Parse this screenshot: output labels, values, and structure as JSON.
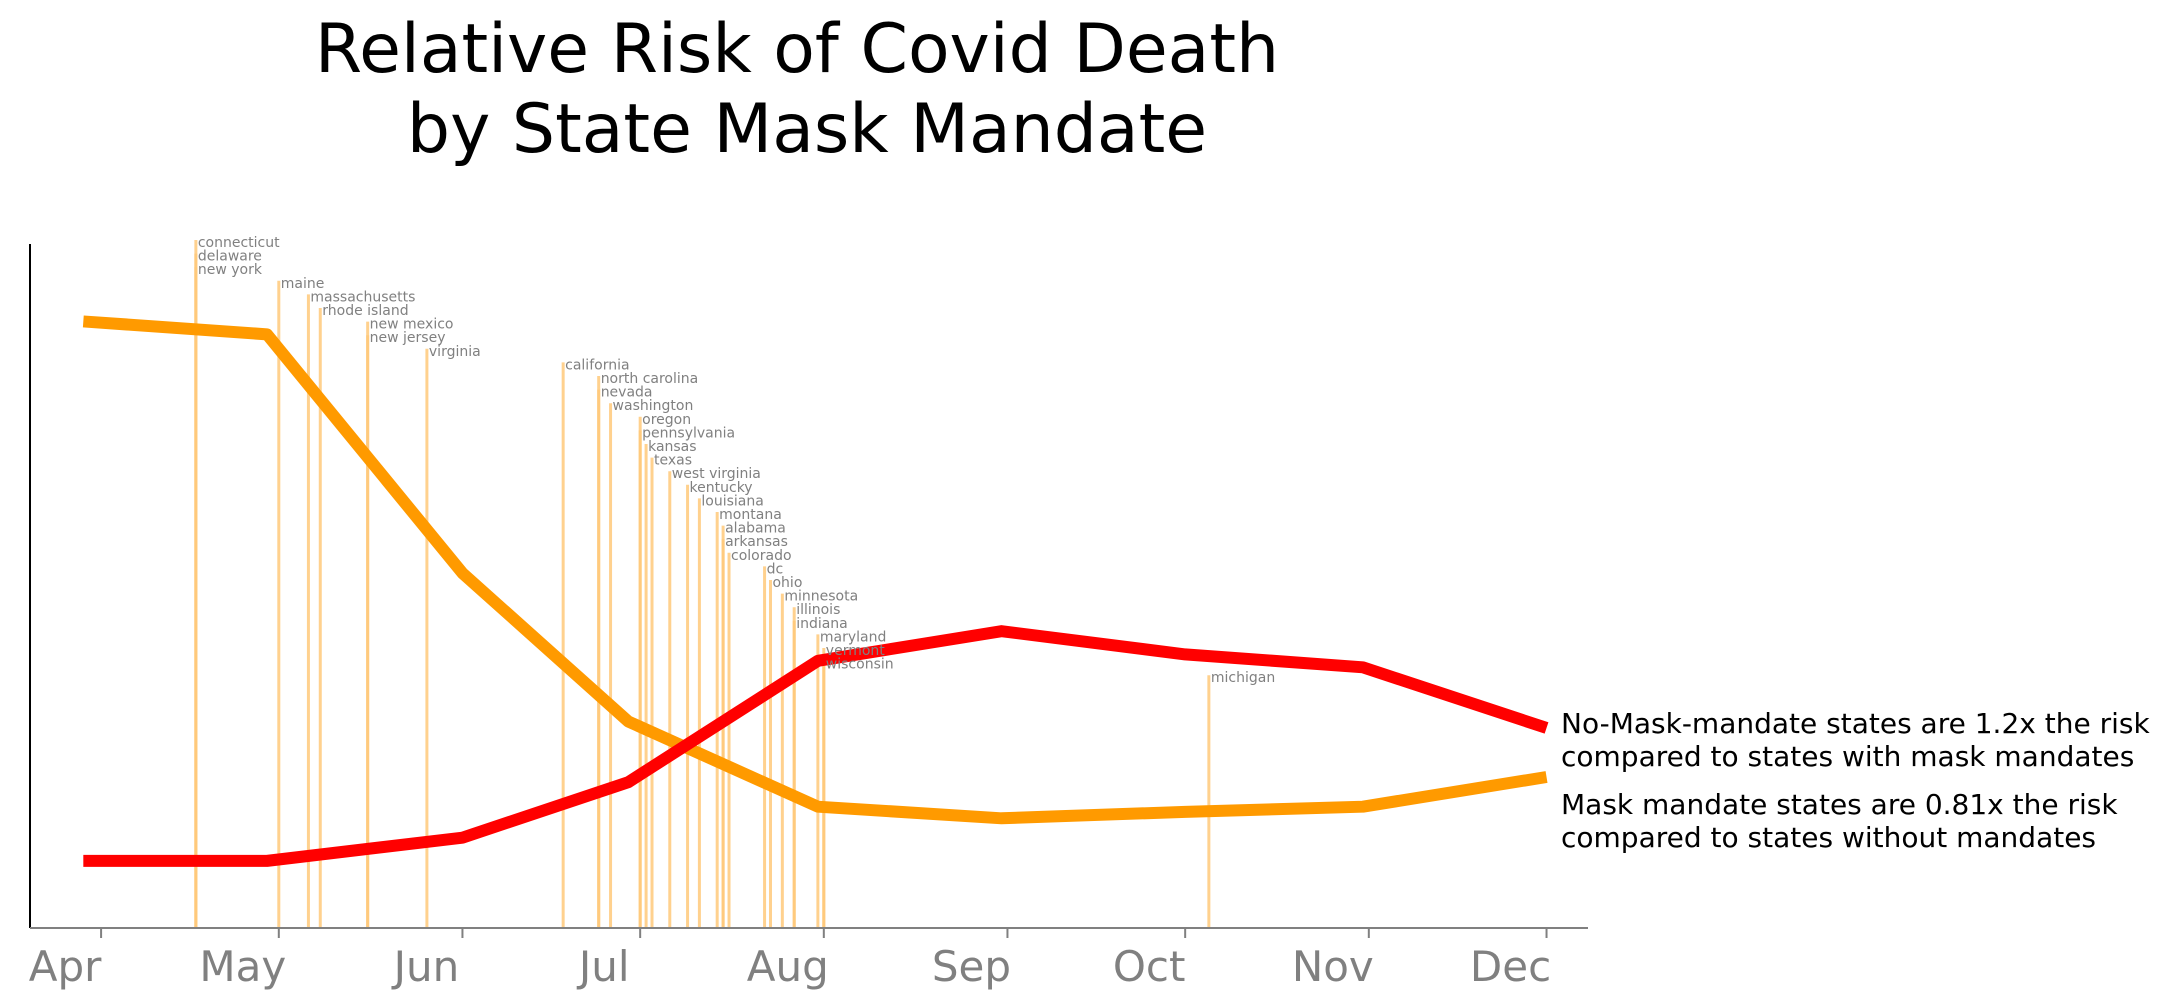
{
  "chart_data": {
    "type": "line",
    "title_lines": [
      "Relative Risk of Covid Death",
      "by State Mask Mandate"
    ],
    "x_tick_labels": [
      "Apr",
      "May",
      "Jun",
      "Jul",
      "Aug",
      "Sep",
      "Oct",
      "Nov",
      "Dec"
    ],
    "x_ticks": [
      "2020-04-01",
      "2020-05-01",
      "2020-06-01",
      "2020-07-01",
      "2020-08-01",
      "2020-09-01",
      "2020-10-01",
      "2020-11-01",
      "2020-12-01"
    ],
    "xlim": [
      "2020-03-20",
      "2020-12-08"
    ],
    "ylim": [
      0.75,
      1.28
    ],
    "y_ticks_shown": false,
    "grid": false,
    "series": [
      {
        "color": "#ff9a00",
        "x": [
          "2020-03-29",
          "2020-04-29",
          "2020-06-01",
          "2020-06-29",
          "2020-07-31",
          "2020-08-31",
          "2020-10-01",
          "2020-10-31",
          "2020-12-01"
        ],
        "values": [
          1.22,
          1.21,
          1.025,
          0.91,
          0.844,
          0.835,
          0.84,
          0.844,
          0.867
        ]
      },
      {
        "color": "#ff0000",
        "x": [
          "2020-03-29",
          "2020-04-29",
          "2020-06-01",
          "2020-06-29",
          "2020-07-31",
          "2020-08-31",
          "2020-10-01",
          "2020-10-31",
          "2020-12-01"
        ],
        "values": [
          0.802,
          0.802,
          0.82,
          0.863,
          0.957,
          0.98,
          0.962,
          0.952,
          0.905
        ]
      }
    ],
    "annotations": [
      {
        "lines": [
          "No-Mask-mandate states are 1.2x the risk",
          " compared to states with mask mandates"
        ]
      },
      {
        "lines": [
          "Mask mandate states are 0.81x the risk",
          " compared to states without mandates"
        ]
      }
    ],
    "mandate_color": "#ffc97a",
    "mandates": [
      {
        "state": "connecticut",
        "date": "2020-04-17"
      },
      {
        "state": "delaware",
        "date": "2020-04-17"
      },
      {
        "state": "new york",
        "date": "2020-04-17"
      },
      {
        "state": "maine",
        "date": "2020-05-01"
      },
      {
        "state": "massachusetts",
        "date": "2020-05-06"
      },
      {
        "state": "rhode island",
        "date": "2020-05-08"
      },
      {
        "state": "new mexico",
        "date": "2020-05-16"
      },
      {
        "state": "new jersey",
        "date": "2020-05-16"
      },
      {
        "state": "virginia",
        "date": "2020-05-26"
      },
      {
        "state": "california",
        "date": "2020-06-18"
      },
      {
        "state": "north carolina",
        "date": "2020-06-24"
      },
      {
        "state": "nevada",
        "date": "2020-06-24"
      },
      {
        "state": "washington",
        "date": "2020-06-26"
      },
      {
        "state": "oregon",
        "date": "2020-07-01"
      },
      {
        "state": "pennsylvania",
        "date": "2020-07-01"
      },
      {
        "state": "kansas",
        "date": "2020-07-02"
      },
      {
        "state": "texas",
        "date": "2020-07-03"
      },
      {
        "state": "west virginia",
        "date": "2020-07-06"
      },
      {
        "state": "kentucky",
        "date": "2020-07-09"
      },
      {
        "state": "louisiana",
        "date": "2020-07-11"
      },
      {
        "state": "montana",
        "date": "2020-07-14"
      },
      {
        "state": "alabama",
        "date": "2020-07-15"
      },
      {
        "state": "arkansas",
        "date": "2020-07-15"
      },
      {
        "state": "colorado",
        "date": "2020-07-16"
      },
      {
        "state": "dc",
        "date": "2020-07-22"
      },
      {
        "state": "ohio",
        "date": "2020-07-23"
      },
      {
        "state": "minnesota",
        "date": "2020-07-25"
      },
      {
        "state": "illinois",
        "date": "2020-07-27"
      },
      {
        "state": "indiana",
        "date": "2020-07-27"
      },
      {
        "state": "maryland",
        "date": "2020-07-31"
      },
      {
        "state": "vermont",
        "date": "2020-08-01"
      },
      {
        "state": "wisconsin",
        "date": "2020-08-01"
      },
      {
        "state": "michigan",
        "date": "2020-10-05"
      }
    ]
  }
}
